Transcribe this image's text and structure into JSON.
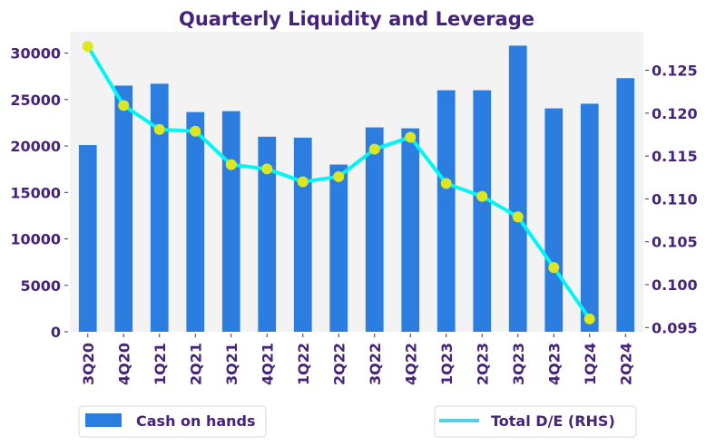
{
  "chart_data": {
    "type": "bar+line",
    "title": "Quarterly Liquidity and Leverage",
    "categories": [
      "3Q20",
      "4Q20",
      "1Q21",
      "2Q21",
      "3Q21",
      "4Q21",
      "1Q22",
      "2Q22",
      "3Q22",
      "4Q22",
      "1Q23",
      "2Q23",
      "3Q23",
      "4Q23",
      "1Q24",
      "2Q24"
    ],
    "series": [
      {
        "name": "Cash on hands",
        "type": "bar",
        "axis": "left",
        "color": "#2b7de0",
        "values": [
          20100,
          26500,
          26700,
          23650,
          23750,
          21000,
          20900,
          18000,
          22000,
          21900,
          26000,
          26000,
          30800,
          24050,
          24550,
          27300
        ]
      },
      {
        "name": "Total D/E (RHS)",
        "type": "line",
        "axis": "right",
        "color": "#00f5f5",
        "marker_color": "#dde61f",
        "legend_color": "#56cfe0",
        "values": [
          0.1278,
          0.1209,
          0.1181,
          0.1179,
          0.114,
          0.1135,
          0.112,
          0.1126,
          0.1158,
          0.1172,
          0.1118,
          0.1103,
          0.1079,
          0.102,
          0.096,
          null
        ]
      }
    ],
    "left_axis": {
      "ylim": [
        0,
        32300
      ],
      "ticks": [
        0,
        5000,
        10000,
        15000,
        20000,
        25000,
        30000
      ],
      "tick_labels": [
        "0",
        "5000",
        "10000",
        "15000",
        "20000",
        "25000",
        "30000"
      ]
    },
    "right_axis": {
      "ylim": [
        0.0945,
        0.1295
      ],
      "ticks": [
        0.095,
        0.1,
        0.105,
        0.11,
        0.115,
        0.12,
        0.125
      ],
      "tick_labels": [
        "0.095",
        "0.100",
        "0.105",
        "0.110",
        "0.115",
        "0.120",
        "0.125"
      ]
    },
    "xlabel": "",
    "ylabel": "",
    "grid": false,
    "plot_background": "#f3f3f3",
    "text_color": "#46237a",
    "legend": [
      {
        "label": "Cash on hands",
        "placement": "bottom-left"
      },
      {
        "label": "Total D/E (RHS)",
        "placement": "bottom-right"
      }
    ]
  }
}
